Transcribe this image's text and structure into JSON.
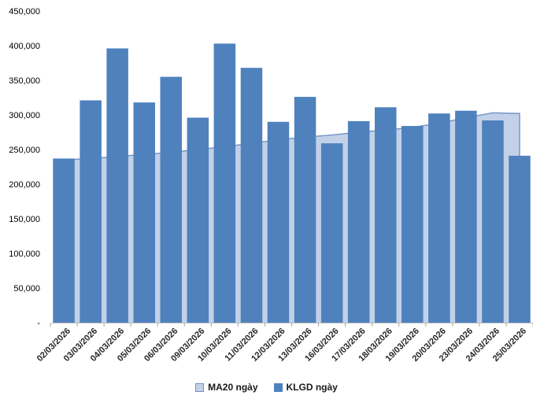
{
  "chart_data": {
    "type": "combo-bar-area",
    "title": "",
    "xlabel": "",
    "ylabel": "",
    "categories": [
      "02/03/2026",
      "03/03/2026",
      "04/03/2026",
      "05/03/2026",
      "06/03/2026",
      "09/03/2026",
      "10/03/2026",
      "11/03/2026",
      "12/03/2026",
      "13/03/2026",
      "16/03/2026",
      "17/03/2026",
      "18/03/2026",
      "19/03/2026",
      "20/03/2026",
      "23/03/2026",
      "24/03/2026",
      "25/03/2026"
    ],
    "series": [
      {
        "name": "MA20 ngày",
        "type": "area",
        "fill_color": "#C2D1E7",
        "line_color": "#7191C6",
        "values": [
          235000,
          237000,
          240000,
          243000,
          246000,
          250000,
          254000,
          259000,
          264000,
          268000,
          271000,
          275000,
          278000,
          282000,
          288000,
          296000,
          303000,
          302000
        ]
      },
      {
        "name": "KLGD ngày",
        "type": "bar",
        "fill_color": "#4F81BD",
        "values": [
          237000,
          321000,
          396000,
          318000,
          355000,
          296000,
          403000,
          368000,
          290000,
          326000,
          259000,
          291000,
          311000,
          284000,
          302000,
          306000,
          292000,
          241000
        ]
      }
    ],
    "ylim": [
      0,
      450000
    ],
    "ytick_step": 50000,
    "ytick_labels": [
      "450,000",
      "400,000",
      "350,000",
      "300,000",
      "250,000",
      "200,000",
      "150,000",
      "100,000",
      "50,000",
      "-"
    ],
    "grid": false,
    "legend_position": "bottom",
    "axis_line_color": "#BFBFBF",
    "tick_color": "#A6A6A6",
    "ytick_text_color": "#000000",
    "xtick_text_color": "#262626"
  },
  "legend": {
    "items": [
      {
        "label": "MA20 ngày"
      },
      {
        "label": "KLGD ngày"
      }
    ]
  }
}
